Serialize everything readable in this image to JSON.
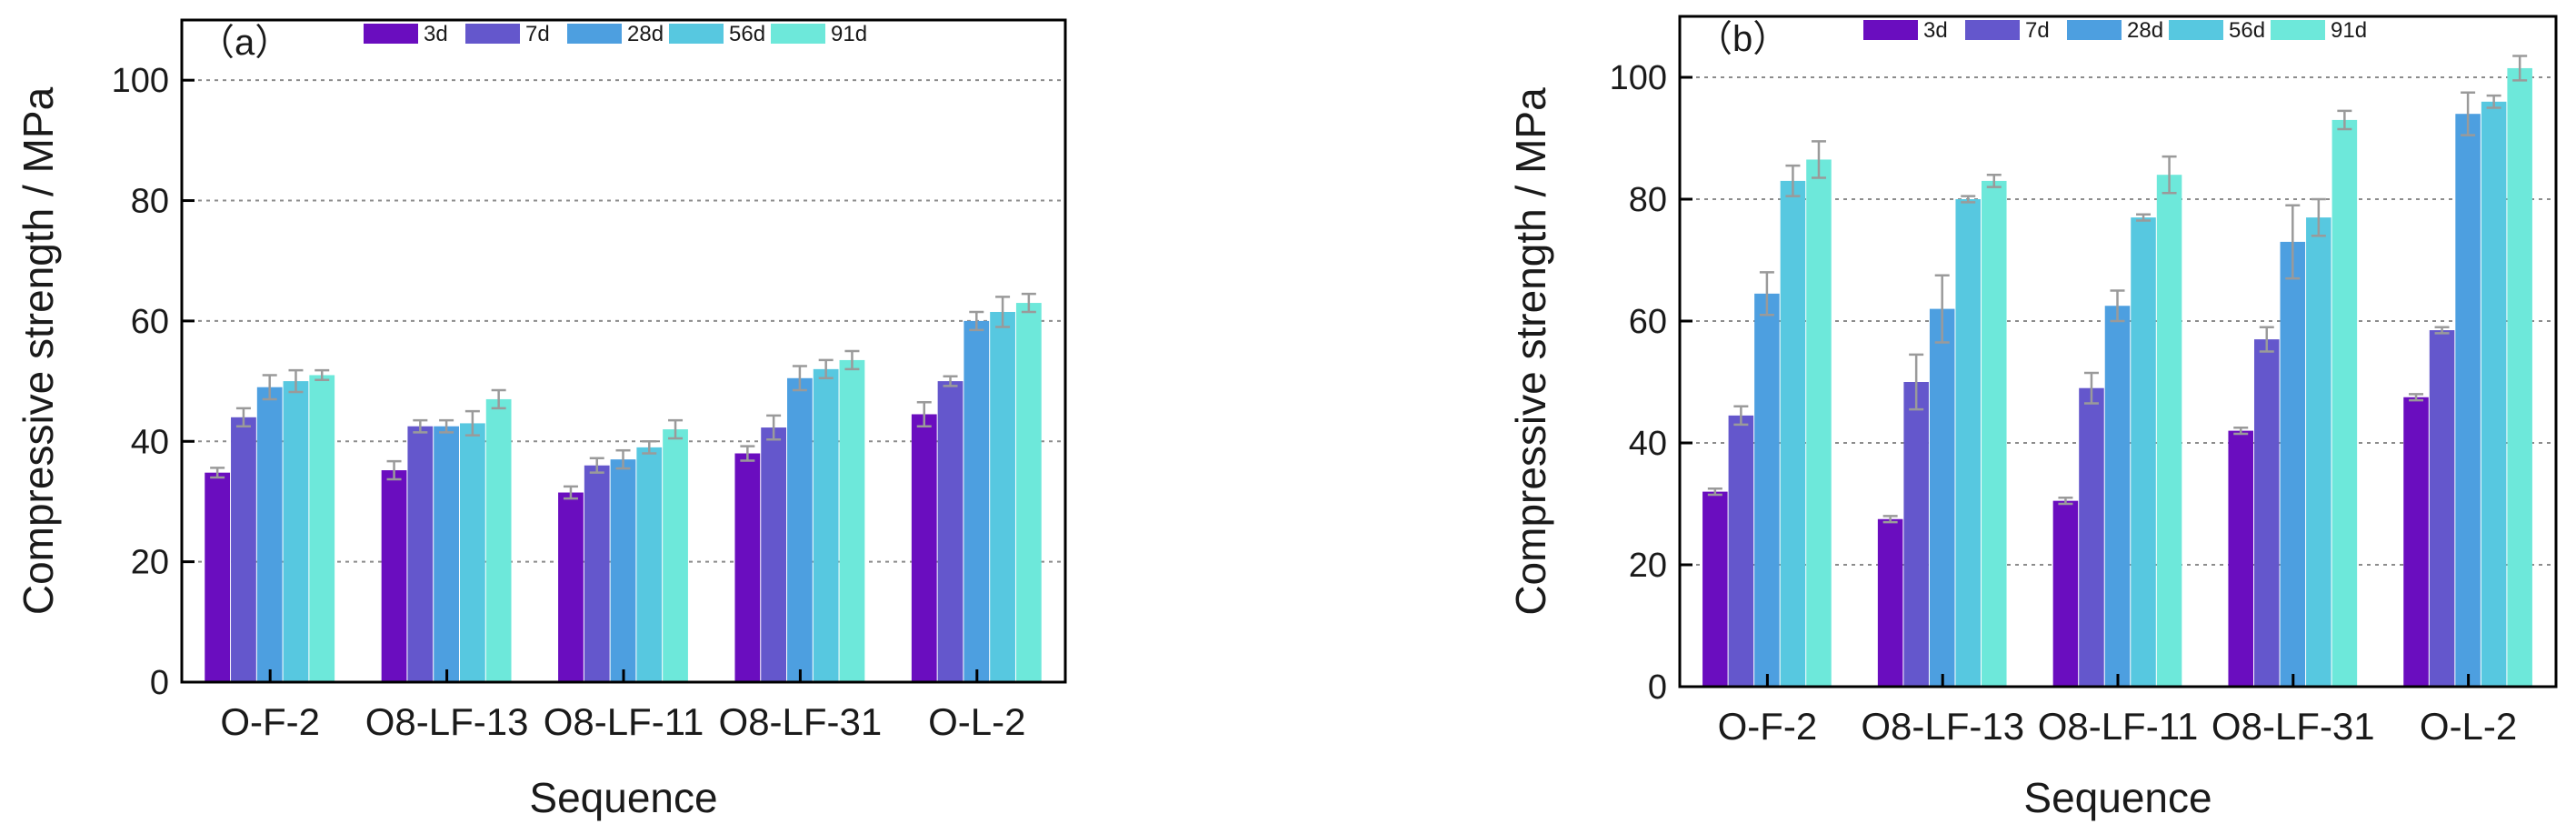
{
  "colors": {
    "3d": "#6a0dbf",
    "7d": "#6457cc",
    "28d": "#4d9fe0",
    "56d": "#57c8e0",
    "91d": "#6de8da",
    "grid": "#8c8c8c",
    "axis": "#000000"
  },
  "chart_data": [
    {
      "type": "bar",
      "panel_label": "（a）",
      "xlabel": "Sequence",
      "ylabel": "Compressive strength / MPa",
      "ylim": [
        0,
        110
      ],
      "yticks": [
        0,
        20,
        40,
        60,
        80,
        100
      ],
      "grid": true,
      "legend_position": "top",
      "categories": [
        "O-F-2",
        "O8-LF-13",
        "O8-LF-11",
        "O8-LF-31",
        "O-L-2"
      ],
      "series": [
        {
          "name": "3d",
          "values": [
            34.8,
            35.2,
            31.5,
            38.0,
            44.5
          ],
          "errors": [
            0.8,
            1.5,
            1.0,
            1.2,
            2.0
          ]
        },
        {
          "name": "7d",
          "values": [
            44.0,
            42.5,
            36.0,
            42.3,
            50.0
          ],
          "errors": [
            1.5,
            1.0,
            1.2,
            2.0,
            0.8
          ]
        },
        {
          "name": "28d",
          "values": [
            49.0,
            42.5,
            37.0,
            50.5,
            60.0
          ],
          "errors": [
            2.0,
            1.0,
            1.5,
            2.0,
            1.5
          ]
        },
        {
          "name": "56d",
          "values": [
            50.0,
            43.0,
            39.0,
            52.0,
            61.5
          ],
          "errors": [
            1.8,
            2.0,
            1.0,
            1.5,
            2.5
          ]
        },
        {
          "name": "91d",
          "values": [
            51.0,
            47.0,
            42.0,
            53.5,
            63.0
          ],
          "errors": [
            0.8,
            1.5,
            1.5,
            1.5,
            1.5
          ]
        }
      ]
    },
    {
      "type": "bar",
      "panel_label": "（b）",
      "xlabel": "Sequence",
      "ylabel": "Compressive strength / MPa",
      "ylim": [
        0,
        110
      ],
      "yticks": [
        0,
        20,
        40,
        60,
        80,
        100
      ],
      "grid": true,
      "legend_position": "top",
      "categories": [
        "O-F-2",
        "O8-LF-13",
        "O8-LF-11",
        "O8-LF-31",
        "O-L-2"
      ],
      "series": [
        {
          "name": "3d",
          "values": [
            32.0,
            27.5,
            30.5,
            42.0,
            47.5
          ],
          "errors": [
            0.5,
            0.5,
            0.5,
            0.5,
            0.5
          ]
        },
        {
          "name": "7d",
          "values": [
            44.5,
            50.0,
            49.0,
            57.0,
            58.5
          ],
          "errors": [
            1.5,
            4.5,
            2.5,
            2.0,
            0.5
          ]
        },
        {
          "name": "28d",
          "values": [
            64.5,
            62.0,
            62.5,
            73.0,
            94.0
          ],
          "errors": [
            3.5,
            5.5,
            2.5,
            6.0,
            3.5
          ]
        },
        {
          "name": "56d",
          "values": [
            83.0,
            80.0,
            77.0,
            77.0,
            96.0
          ],
          "errors": [
            2.5,
            0.5,
            0.5,
            3.0,
            1.0
          ]
        },
        {
          "name": "91d",
          "values": [
            86.5,
            83.0,
            84.0,
            93.0,
            101.5
          ],
          "errors": [
            3.0,
            1.0,
            3.0,
            1.5,
            2.0
          ]
        }
      ]
    }
  ]
}
